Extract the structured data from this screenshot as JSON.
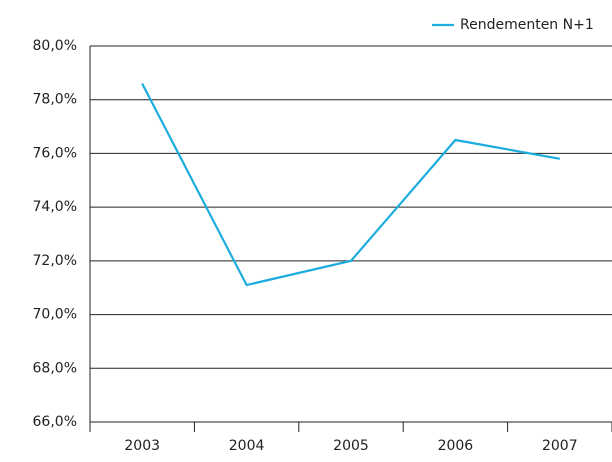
{
  "chart_data": {
    "type": "line",
    "categories": [
      "2003",
      "2004",
      "2005",
      "2006",
      "2007"
    ],
    "series": [
      {
        "name": "Rendementen N+1",
        "color": "#1cadde",
        "values": [
          78.6,
          71.1,
          72.0,
          76.5,
          75.8
        ]
      }
    ],
    "ylim": [
      66,
      80
    ],
    "yticks": [
      {
        "value": 66,
        "label": "66,0%"
      },
      {
        "value": 68,
        "label": "68,0%"
      },
      {
        "value": 70,
        "label": "70,0%"
      },
      {
        "value": 72,
        "label": "72,0%"
      },
      {
        "value": 74,
        "label": "74,0%"
      },
      {
        "value": 76,
        "label": "76,0%"
      },
      {
        "value": 78,
        "label": "78,0%"
      },
      {
        "value": 80,
        "label": "80,0%"
      }
    ],
    "grid": true,
    "legend": "top-right"
  }
}
